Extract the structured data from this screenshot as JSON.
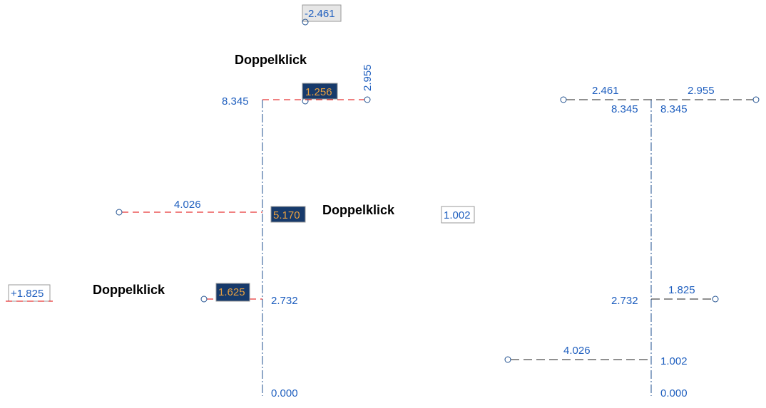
{
  "colors": {
    "value_text": "#1f5fbf",
    "selected_bg": "#173a6b",
    "selected_text": "#e8a040",
    "arrow": "#ff0000",
    "dim_line_active": "#e00000",
    "axis_line": "#1f4f8f"
  },
  "annotation": {
    "double_click": "Doppelklick"
  },
  "before": {
    "top": {
      "level": "8.345",
      "selected_value": "1.256",
      "edited_value": "-2.461",
      "right_value": "2.955"
    },
    "middle": {
      "left_value": "4.026",
      "selected_value": "5.170"
    },
    "bottom": {
      "level": "2.732",
      "selected_value": "1.625",
      "edited_value": "+1.825"
    },
    "base": {
      "level": "0.000"
    }
  },
  "middle_edit": {
    "edited_value": "1.002"
  },
  "after": {
    "top": {
      "left_value": "2.461",
      "right_value": "2.955",
      "level_left": "8.345",
      "level_right": "8.345"
    },
    "bottom": {
      "level": "2.732",
      "right_value": "1.825"
    },
    "new": {
      "left_value": "4.026",
      "level": "1.002"
    },
    "base": {
      "level": "0.000"
    }
  }
}
